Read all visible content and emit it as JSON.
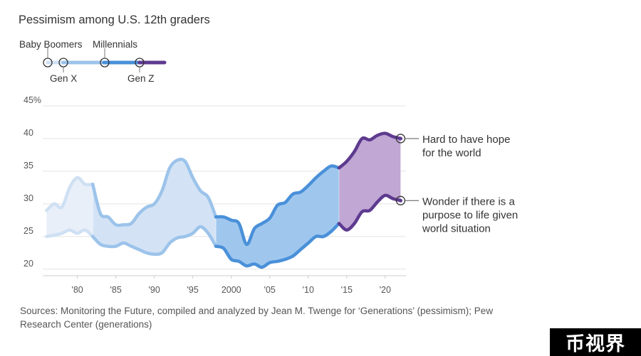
{
  "title": "Pessimism among U.S. 12th graders",
  "legend": {
    "items": [
      {
        "label": "Baby Boomers",
        "color": "#cfe0f3"
      },
      {
        "label": "Gen X",
        "color": "#9cc3ea"
      },
      {
        "label": "Millennials",
        "color": "#4a90d9"
      },
      {
        "label": "Gen Z",
        "color": "#5e3a8f"
      }
    ]
  },
  "source": "Sources: Monitoring the Future, compiled and analyzed by Jean M. Twenge for  ‘Generations’ (pessimism); Pew Research Center (generations)",
  "badge": "币视界",
  "chart_data": {
    "type": "line",
    "title": "Pessimism among U.S. 12th graders",
    "xlim": [
      1975.5,
      2022.7
    ],
    "ylim": [
      19,
      45
    ],
    "y_ticks": [
      20,
      25,
      30,
      35,
      40,
      45
    ],
    "y_tick_labels": [
      "20",
      "25",
      "30",
      "35",
      "40",
      "45%"
    ],
    "x_ticks": [
      1980,
      1985,
      1990,
      1995,
      2000,
      2005,
      2010,
      2015,
      2020
    ],
    "x_tick_labels": [
      "'80",
      "'85",
      "'90",
      "'95",
      "2000",
      "'05",
      "'10",
      "'15",
      "'20"
    ],
    "generation_boundaries": [
      {
        "name": "Baby Boomers",
        "start": 1976,
        "end": 1982,
        "color": "#cfe0f3",
        "fill": "#e8eff9"
      },
      {
        "name": "Gen X",
        "start": 1982,
        "end": 1998,
        "color": "#9cc3ea",
        "fill": "#d3e3f5"
      },
      {
        "name": "Millennials",
        "start": 1998,
        "end": 2014,
        "color": "#4a90d9",
        "fill": "#9fc7ee"
      },
      {
        "name": "Gen Z",
        "start": 2014,
        "end": 2022,
        "color": "#5e3a8f",
        "fill": "#c0a7d4"
      }
    ],
    "series": [
      {
        "name": "Hard to have hope for the world",
        "x": [
          1976,
          1977,
          1978,
          1979,
          1980,
          1981,
          1982,
          1983,
          1984,
          1985,
          1986,
          1987,
          1988,
          1989,
          1990,
          1991,
          1992,
          1993,
          1994,
          1995,
          1996,
          1997,
          1998,
          1999,
          2000,
          2001,
          2002,
          2003,
          2004,
          2005,
          2006,
          2007,
          2008,
          2009,
          2010,
          2011,
          2012,
          2013,
          2014,
          2015,
          2016,
          2017,
          2018,
          2019,
          2020,
          2021,
          2022
        ],
        "values": [
          29,
          30,
          29.5,
          32.5,
          34,
          33,
          33,
          28.5,
          28,
          26.8,
          26.8,
          27,
          28.5,
          29.5,
          30,
          32,
          35.5,
          36.7,
          36.5,
          34,
          32,
          31,
          28,
          28,
          27.5,
          27,
          23.8,
          26.2,
          27,
          27.8,
          29.8,
          30.2,
          31.5,
          31.8,
          32.8,
          34,
          35,
          35.8,
          35.5,
          36.5,
          38,
          40,
          39.8,
          40.5,
          40.8,
          40.3,
          40
        ]
      },
      {
        "name": "Wonder if there is a purpose to life given world situation",
        "x": [
          1976,
          1977,
          1978,
          1979,
          1980,
          1981,
          1982,
          1983,
          1984,
          1985,
          1986,
          1987,
          1988,
          1989,
          1990,
          1991,
          1992,
          1993,
          1994,
          1995,
          1996,
          1997,
          1998,
          1999,
          2000,
          2001,
          2002,
          2003,
          2004,
          2005,
          2006,
          2007,
          2008,
          2009,
          2010,
          2011,
          2012,
          2013,
          2014,
          2015,
          2016,
          2017,
          2018,
          2019,
          2020,
          2021,
          2022
        ],
        "values": [
          25,
          25.2,
          25.5,
          26,
          25.5,
          26,
          25,
          23.8,
          23.5,
          23.5,
          24,
          23.5,
          23,
          22.5,
          22.3,
          22.5,
          24,
          24.8,
          25,
          25.5,
          26.5,
          25.5,
          23.5,
          23.2,
          21.5,
          21.2,
          20.5,
          20.8,
          20.3,
          21,
          21.2,
          21.5,
          22,
          23,
          24,
          25,
          25,
          25.8,
          27,
          26,
          27,
          28.8,
          29,
          30.3,
          31.3,
          30.8,
          30.5
        ]
      }
    ],
    "annotations": [
      {
        "text": "Hard to have hope for the world",
        "x": 2022,
        "y": 40
      },
      {
        "text": "Wonder if there is a purpose to life given world situation",
        "x": 2022,
        "y": 30.5
      }
    ],
    "grid": true
  }
}
